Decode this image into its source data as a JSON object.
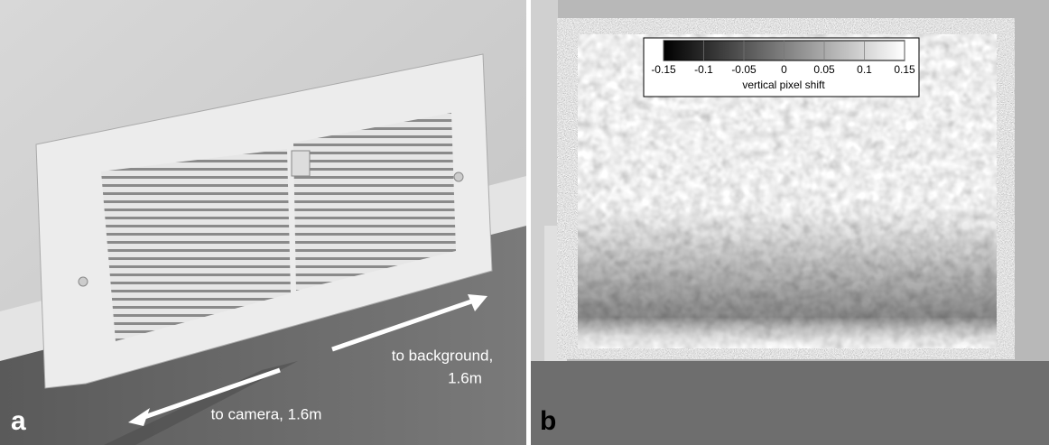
{
  "panels": [
    {
      "label": "a",
      "annotations": [
        "to background,",
        "1.6m",
        "to camera, 1.6m"
      ]
    },
    {
      "label": "b",
      "colorbar": {
        "label": "vertical pixel shift",
        "lim": [
          -0.15,
          0.15
        ],
        "ticks": [
          -0.15,
          -0.1,
          -0.05,
          0,
          0.05,
          0.1,
          0.15
        ]
      }
    }
  ]
}
